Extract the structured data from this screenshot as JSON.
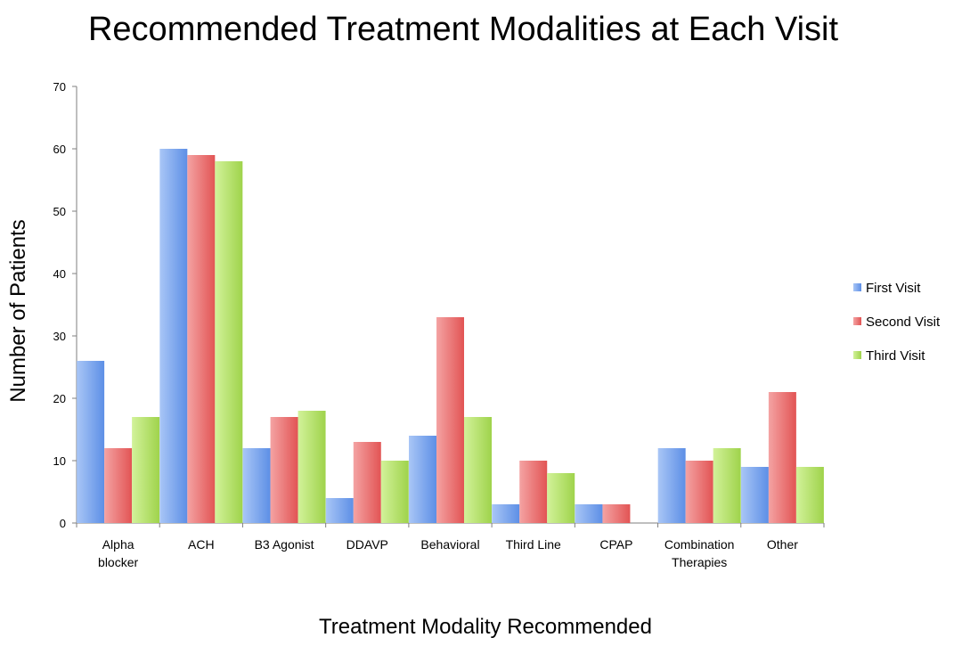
{
  "chart_data": {
    "type": "bar",
    "title": "Recommended Treatment Modalities at Each Visit",
    "xlabel": "Treatment Modality Recommended",
    "ylabel": "Number of Patients",
    "ylim": [
      0,
      70
    ],
    "yticks": [
      "0",
      "10",
      "20",
      "30",
      "40",
      "50",
      "60",
      "70"
    ],
    "categories": [
      [
        "Alpha",
        "blocker"
      ],
      [
        "ACH"
      ],
      [
        "B3 Agonist"
      ],
      [
        "DDAVP"
      ],
      [
        "Behavioral"
      ],
      [
        "Third Line"
      ],
      [
        "CPAP"
      ],
      [
        "Combination",
        "Therapies"
      ],
      [
        "Other"
      ]
    ],
    "series": [
      {
        "name": "First Visit",
        "color": "#7ea7f0",
        "values": [
          26,
          60,
          12,
          4,
          14,
          3,
          3,
          12,
          9
        ]
      },
      {
        "name": "Second Visit",
        "color": "#ee6f6f",
        "values": [
          12,
          59,
          17,
          13,
          33,
          10,
          3,
          10,
          21
        ]
      },
      {
        "name": "Third Visit",
        "color": "#b6e36a",
        "values": [
          17,
          58,
          18,
          10,
          17,
          8,
          0,
          12,
          9
        ]
      }
    ],
    "legend_position": "right",
    "grid": false
  }
}
